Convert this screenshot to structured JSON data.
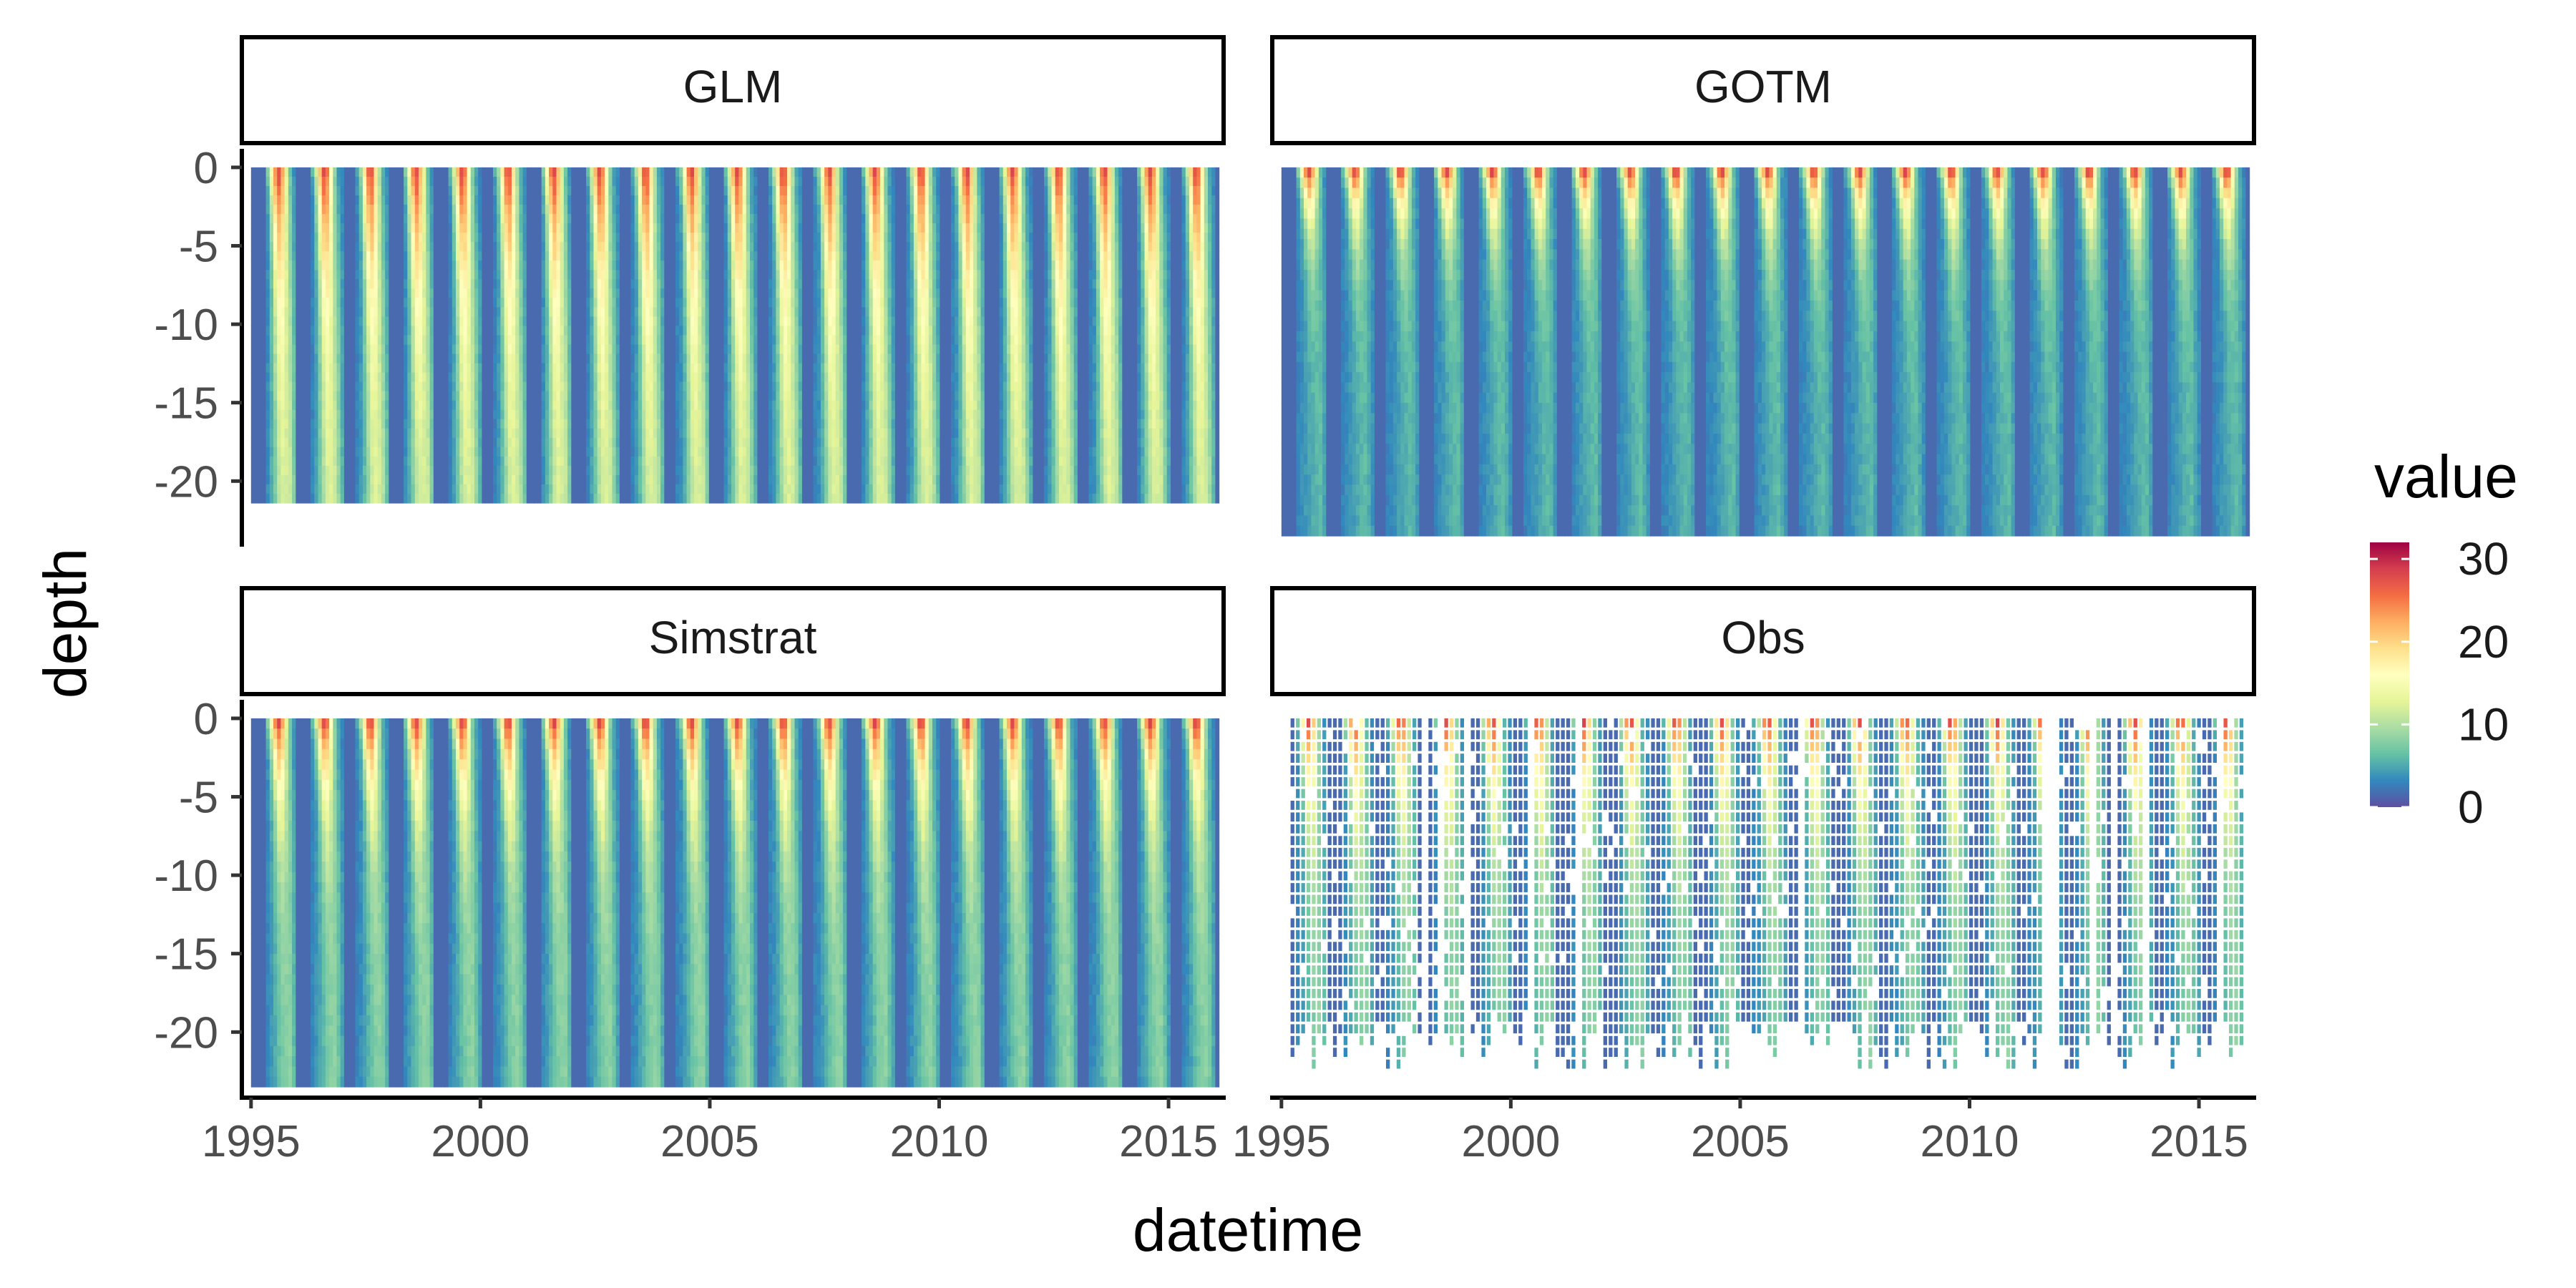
{
  "chart_data": {
    "type": "heatmap",
    "xlabel": "datetime",
    "ylabel": "depth",
    "xlim": [
      1994.8,
      2016.2
    ],
    "xticks": [
      "1995",
      "2000",
      "2005",
      "2010",
      "2015"
    ],
    "ylim": [
      -24,
      1
    ],
    "yticks": [
      "0",
      "-5",
      "-10",
      "-15",
      "-20"
    ],
    "legend": {
      "title": "value",
      "placement": "right",
      "range": [
        0,
        32
      ],
      "ticks": [
        "30",
        "20",
        "10",
        "0"
      ],
      "colors": [
        "#5E4FA2",
        "#3288BD",
        "#66C2A5",
        "#ABDDA4",
        "#E6F598",
        "#FFFFBF",
        "#FEE08B",
        "#FDAE61",
        "#F46D43",
        "#D53E4F",
        "#9E0142"
      ]
    },
    "panels": [
      {
        "name": "GLM",
        "x_start": 1995.0,
        "x_end": 2016.1,
        "depth_bottom": -21.4,
        "mixing": "strong"
      },
      {
        "name": "GOTM",
        "x_start": 1995.0,
        "x_end": 2016.1,
        "depth_bottom": -23.5,
        "mixing": "weak"
      },
      {
        "name": "Simstrat",
        "x_start": 1995.0,
        "x_end": 2016.1,
        "depth_bottom": -23.5,
        "mixing": "medium"
      },
      {
        "name": "Obs",
        "x_start": 1995.2,
        "x_end": 2016.0,
        "depth_bottom": -22.5,
        "mixing": "medium"
      }
    ]
  }
}
